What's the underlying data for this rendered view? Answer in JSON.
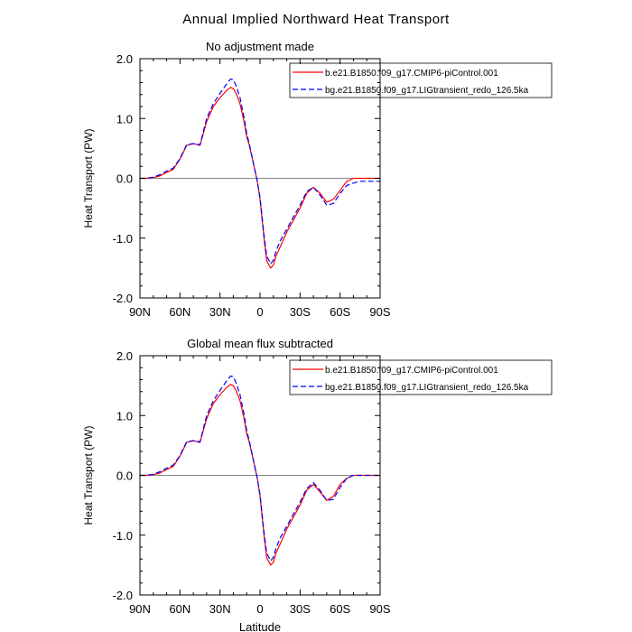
{
  "title": "Annual Implied Northward Heat Transport",
  "chart_data": [
    {
      "type": "line",
      "title": "No adjustment made",
      "xlabel": "",
      "ylabel": "Heat Transport (PW)",
      "xlim": [
        90,
        -90
      ],
      "ylim": [
        -2.0,
        2.0
      ],
      "xticks": [
        90,
        60,
        30,
        0,
        -30,
        -60,
        -90
      ],
      "xticklabels": [
        "90N",
        "60N",
        "30N",
        "0",
        "30S",
        "60S",
        "90S"
      ],
      "yticks": [
        2.0,
        1.0,
        0.0,
        -1.0,
        -2.0
      ],
      "yticklabels": [
        "2.0",
        "1.0",
        "0.0",
        "-1.0",
        "-2.0"
      ],
      "zero_line": true,
      "legend_position": "top-right",
      "series": [
        {
          "name": "b.e21.B1850.f09_g17.CMIP6-piControl.001",
          "color": "#ff0000",
          "dash": "solid",
          "x": [
            90,
            85,
            80,
            75,
            70,
            65,
            60,
            55,
            50,
            45,
            40,
            35,
            30,
            25,
            22,
            20,
            18,
            15,
            12,
            10,
            8,
            5,
            2,
            0,
            -3,
            -5,
            -8,
            -10,
            -12,
            -15,
            -20,
            -25,
            -30,
            -35,
            -40,
            -45,
            -50,
            -55,
            -60,
            -65,
            -70,
            -75,
            -80,
            -85,
            -90
          ],
          "y": [
            0.0,
            0.0,
            0.01,
            0.04,
            0.1,
            0.15,
            0.32,
            0.55,
            0.58,
            0.55,
            0.95,
            1.2,
            1.35,
            1.47,
            1.52,
            1.5,
            1.42,
            1.25,
            0.95,
            0.7,
            0.55,
            0.25,
            -0.05,
            -0.35,
            -1.0,
            -1.38,
            -1.5,
            -1.45,
            -1.3,
            -1.15,
            -0.9,
            -0.7,
            -0.5,
            -0.25,
            -0.15,
            -0.25,
            -0.4,
            -0.35,
            -0.2,
            -0.05,
            0.0,
            0.0,
            0.0,
            0.0,
            0.0
          ]
        },
        {
          "name": "bg.e21.B1850.f09_g17.LIGtransient_redo_126.5ka",
          "color": "#0000ff",
          "dash": "dashed",
          "x": [
            90,
            85,
            80,
            75,
            70,
            65,
            60,
            55,
            50,
            45,
            40,
            35,
            30,
            25,
            22,
            20,
            18,
            15,
            12,
            10,
            8,
            5,
            2,
            0,
            -3,
            -5,
            -8,
            -10,
            -12,
            -15,
            -20,
            -25,
            -30,
            -35,
            -40,
            -45,
            -50,
            -55,
            -60,
            -65,
            -70,
            -75,
            -80,
            -85,
            -90
          ],
          "y": [
            0.0,
            0.0,
            0.02,
            0.06,
            0.12,
            0.17,
            0.33,
            0.56,
            0.58,
            0.56,
            1.0,
            1.25,
            1.42,
            1.58,
            1.66,
            1.65,
            1.55,
            1.35,
            1.02,
            0.75,
            0.57,
            0.26,
            -0.05,
            -0.32,
            -0.95,
            -1.3,
            -1.43,
            -1.37,
            -1.22,
            -1.05,
            -0.85,
            -0.65,
            -0.45,
            -0.22,
            -0.15,
            -0.28,
            -0.45,
            -0.42,
            -0.25,
            -0.12,
            -0.08,
            -0.05,
            -0.05,
            -0.05,
            -0.05
          ]
        }
      ]
    },
    {
      "type": "line",
      "title": "Global mean flux subtracted",
      "xlabel": "Latitude",
      "ylabel": "Heat Transport (PW)",
      "xlim": [
        90,
        -90
      ],
      "ylim": [
        -2.0,
        2.0
      ],
      "xticks": [
        90,
        60,
        30,
        0,
        -30,
        -60,
        -90
      ],
      "xticklabels": [
        "90N",
        "60N",
        "30N",
        "0",
        "30S",
        "60S",
        "90S"
      ],
      "yticks": [
        2.0,
        1.0,
        0.0,
        -1.0,
        -2.0
      ],
      "yticklabels": [
        "2.0",
        "1.0",
        "0.0",
        "-1.0",
        "-2.0"
      ],
      "zero_line": true,
      "legend_position": "top-right",
      "series": [
        {
          "name": "b.e21.B1850.f09_g17.CMIP6-piControl.001",
          "color": "#ff0000",
          "dash": "solid",
          "x": [
            90,
            85,
            80,
            75,
            70,
            65,
            60,
            55,
            50,
            45,
            40,
            35,
            30,
            25,
            22,
            20,
            18,
            15,
            12,
            10,
            8,
            5,
            2,
            0,
            -3,
            -5,
            -8,
            -10,
            -12,
            -15,
            -20,
            -25,
            -30,
            -35,
            -40,
            -45,
            -50,
            -55,
            -60,
            -65,
            -70,
            -75,
            -80,
            -85,
            -90
          ],
          "y": [
            0.0,
            0.0,
            0.01,
            0.04,
            0.1,
            0.15,
            0.32,
            0.55,
            0.58,
            0.55,
            0.95,
            1.2,
            1.35,
            1.47,
            1.52,
            1.5,
            1.42,
            1.25,
            0.95,
            0.7,
            0.55,
            0.25,
            -0.05,
            -0.35,
            -1.0,
            -1.38,
            -1.5,
            -1.45,
            -1.3,
            -1.15,
            -0.9,
            -0.7,
            -0.5,
            -0.25,
            -0.15,
            -0.28,
            -0.42,
            -0.35,
            -0.15,
            -0.05,
            0.0,
            0.0,
            0.0,
            0.0,
            0.0
          ]
        },
        {
          "name": "bg.e21.B1850.f09_g17.LIGtransient_redo_126.5ka",
          "color": "#0000ff",
          "dash": "dashed",
          "x": [
            90,
            85,
            80,
            75,
            70,
            65,
            60,
            55,
            50,
            45,
            40,
            35,
            30,
            25,
            22,
            20,
            18,
            15,
            12,
            10,
            8,
            5,
            2,
            0,
            -3,
            -5,
            -8,
            -10,
            -12,
            -15,
            -20,
            -25,
            -30,
            -35,
            -40,
            -45,
            -50,
            -55,
            -60,
            -65,
            -70,
            -75,
            -80,
            -85,
            -90
          ],
          "y": [
            0.0,
            0.0,
            0.02,
            0.06,
            0.12,
            0.17,
            0.33,
            0.56,
            0.58,
            0.56,
            1.0,
            1.25,
            1.42,
            1.58,
            1.66,
            1.65,
            1.55,
            1.35,
            1.02,
            0.75,
            0.57,
            0.26,
            -0.05,
            -0.32,
            -0.95,
            -1.3,
            -1.43,
            -1.37,
            -1.22,
            -1.05,
            -0.85,
            -0.65,
            -0.45,
            -0.22,
            -0.12,
            -0.25,
            -0.42,
            -0.4,
            -0.2,
            -0.05,
            0.0,
            0.0,
            0.0,
            0.0,
            0.0
          ]
        }
      ]
    }
  ]
}
